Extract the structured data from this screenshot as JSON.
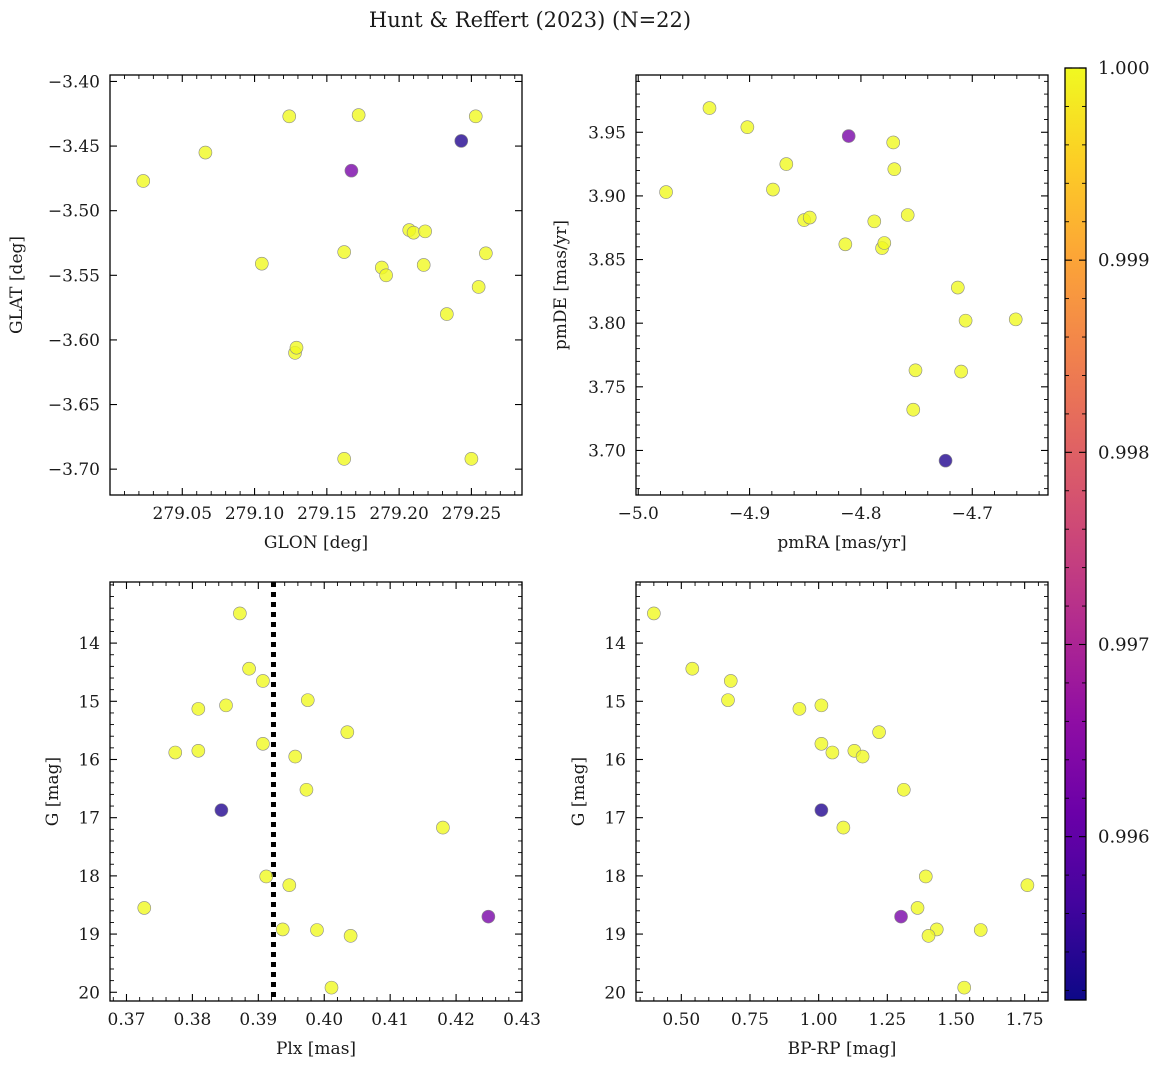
{
  "title": "Hunt & Reffert (2023) (N=22)",
  "colorbar": {
    "min": 0.99515,
    "max": 1.0,
    "ticks": [
      0.996,
      0.997,
      0.998,
      0.999,
      1.0
    ],
    "tick_labels": [
      "0.996",
      "0.997",
      "0.998",
      "0.999",
      "1.000"
    ],
    "colormap": "plasma"
  },
  "chart_data": [
    {
      "type": "scatter",
      "title": "",
      "xlabel": "GLON [deg]",
      "ylabel": "GLAT [deg]",
      "xlim": [
        279.0,
        279.285
      ],
      "ylim": [
        -3.72,
        -3.395
      ],
      "xticks": [
        279.05,
        279.1,
        279.15,
        279.2,
        279.25
      ],
      "xtick_labels": [
        "279.05",
        "279.10",
        "279.15",
        "279.20",
        "279.25"
      ],
      "yticks": [
        -3.4,
        -3.45,
        -3.5,
        -3.55,
        -3.6,
        -3.65,
        -3.7
      ],
      "ytick_labels": [
        "−3.40",
        "−3.45",
        "−3.50",
        "−3.55",
        "−3.60",
        "−3.65",
        "−3.70"
      ],
      "x": [
        279.023,
        279.066,
        279.105,
        279.124,
        279.128,
        279.129,
        279.162,
        279.162,
        279.167,
        279.172,
        279.188,
        279.191,
        279.207,
        279.21,
        279.217,
        279.218,
        279.233,
        279.243,
        279.25,
        279.253,
        279.255,
        279.26
      ],
      "y": [
        -3.477,
        -3.455,
        -3.541,
        -3.427,
        -3.61,
        -3.606,
        -3.532,
        -3.692,
        -3.469,
        -3.426,
        -3.544,
        -3.55,
        -3.515,
        -3.517,
        -3.542,
        -3.516,
        -3.58,
        -3.446,
        -3.692,
        -3.427,
        -3.559,
        -3.533
      ],
      "color_values": [
        1.0,
        1.0,
        1.0,
        1.0,
        1.0,
        1.0,
        1.0,
        1.0,
        0.9963,
        1.0,
        1.0,
        1.0,
        1.0,
        1.0,
        1.0,
        1.0,
        1.0,
        0.99535,
        1.0,
        1.0,
        1.0,
        1.0
      ],
      "vline": null
    },
    {
      "type": "scatter",
      "title": "",
      "xlabel": "pmRA [mas/yr]",
      "ylabel": "pmDE [mas/yr]",
      "xlim": [
        -5.002,
        -4.632
      ],
      "ylim": [
        3.665,
        3.995
      ],
      "xticks": [
        -5.0,
        -4.9,
        -4.8,
        -4.7
      ],
      "xtick_labels": [
        "−5.0",
        "−4.9",
        "−4.8",
        "−4.7"
      ],
      "yticks": [
        3.7,
        3.75,
        3.8,
        3.85,
        3.9,
        3.95
      ],
      "ytick_labels": [
        "3.70",
        "3.75",
        "3.80",
        "3.85",
        "3.90",
        "3.95"
      ],
      "x": [
        -4.975,
        -4.936,
        -4.902,
        -4.867,
        -4.879,
        -4.851,
        -4.846,
        -4.814,
        -4.811,
        -4.788,
        -4.781,
        -4.779,
        -4.771,
        -4.77,
        -4.758,
        -4.753,
        -4.751,
        -4.724,
        -4.713,
        -4.71,
        -4.706,
        -4.661
      ],
      "y": [
        3.903,
        3.969,
        3.954,
        3.925,
        3.905,
        3.881,
        3.883,
        3.862,
        3.947,
        3.88,
        3.859,
        3.863,
        3.942,
        3.921,
        3.885,
        3.732,
        3.763,
        3.692,
        3.828,
        3.762,
        3.802,
        3.803
      ],
      "color_values": [
        1.0,
        1.0,
        1.0,
        1.0,
        1.0,
        1.0,
        1.0,
        1.0,
        0.9963,
        1.0,
        1.0,
        1.0,
        1.0,
        1.0,
        1.0,
        1.0,
        1.0,
        0.99535,
        1.0,
        1.0,
        1.0,
        1.0
      ],
      "vline": null
    },
    {
      "type": "scatter",
      "title": "",
      "xlabel": "Plx [mas]",
      "ylabel": "G [mag]",
      "xlim": [
        0.3675,
        0.43
      ],
      "ylim": [
        20.15,
        12.95
      ],
      "y_inverted": true,
      "xticks": [
        0.37,
        0.38,
        0.39,
        0.4,
        0.41,
        0.42,
        0.43
      ],
      "xtick_labels": [
        "0.37",
        "0.38",
        "0.39",
        "0.40",
        "0.41",
        "0.42",
        "0.43"
      ],
      "yticks": [
        14,
        15,
        16,
        17,
        18,
        19,
        20
      ],
      "ytick_labels": [
        "14",
        "15",
        "16",
        "17",
        "18",
        "19",
        "20"
      ],
      "x": [
        0.3727,
        0.3774,
        0.3809,
        0.3809,
        0.3851,
        0.3844,
        0.3872,
        0.3886,
        0.3907,
        0.3907,
        0.3912,
        0.3937,
        0.3947,
        0.3956,
        0.3973,
        0.3975,
        0.3989,
        0.4011,
        0.4035,
        0.404,
        0.418,
        0.4249
      ],
      "y": [
        18.55,
        15.88,
        15.85,
        15.13,
        15.07,
        16.87,
        13.49,
        14.44,
        15.73,
        14.65,
        18.01,
        18.92,
        18.16,
        15.95,
        16.52,
        14.98,
        18.93,
        19.92,
        15.53,
        19.03,
        17.17,
        18.7
      ],
      "color_values": [
        1.0,
        1.0,
        1.0,
        1.0,
        1.0,
        0.99535,
        1.0,
        1.0,
        1.0,
        1.0,
        1.0,
        1.0,
        1.0,
        1.0,
        1.0,
        1.0,
        1.0,
        1.0,
        1.0,
        1.0,
        1.0,
        0.9963
      ],
      "vline": 0.3923
    },
    {
      "type": "scatter",
      "title": "",
      "xlabel": "BP-RP [mag]",
      "ylabel": "G [mag]",
      "xlim": [
        0.335,
        1.835
      ],
      "ylim": [
        20.15,
        12.95
      ],
      "y_inverted": true,
      "xticks": [
        0.5,
        0.75,
        1.0,
        1.25,
        1.5,
        1.75
      ],
      "xtick_labels": [
        "0.50",
        "0.75",
        "1.00",
        "1.25",
        "1.50",
        "1.75"
      ],
      "yticks": [
        14,
        15,
        16,
        17,
        18,
        19,
        20
      ],
      "ytick_labels": [
        "14",
        "15",
        "16",
        "17",
        "18",
        "19",
        "20"
      ],
      "x": [
        0.4,
        0.54,
        0.68,
        0.67,
        0.93,
        1.01,
        1.01,
        1.05,
        1.13,
        1.16,
        1.22,
        1.01,
        1.09,
        1.31,
        1.39,
        1.36,
        1.3,
        1.43,
        1.4,
        1.59,
        1.76,
        1.53
      ],
      "y": [
        13.49,
        14.44,
        14.65,
        14.98,
        15.13,
        15.07,
        15.73,
        15.88,
        15.85,
        15.95,
        15.53,
        16.87,
        17.17,
        16.52,
        18.01,
        18.55,
        18.7,
        18.92,
        19.03,
        18.93,
        18.16,
        19.92
      ],
      "color_values": [
        1.0,
        1.0,
        1.0,
        1.0,
        1.0,
        1.0,
        1.0,
        1.0,
        1.0,
        1.0,
        1.0,
        0.99535,
        1.0,
        1.0,
        1.0,
        1.0,
        0.9963,
        1.0,
        1.0,
        1.0,
        1.0,
        1.0
      ],
      "vline": null
    }
  ]
}
